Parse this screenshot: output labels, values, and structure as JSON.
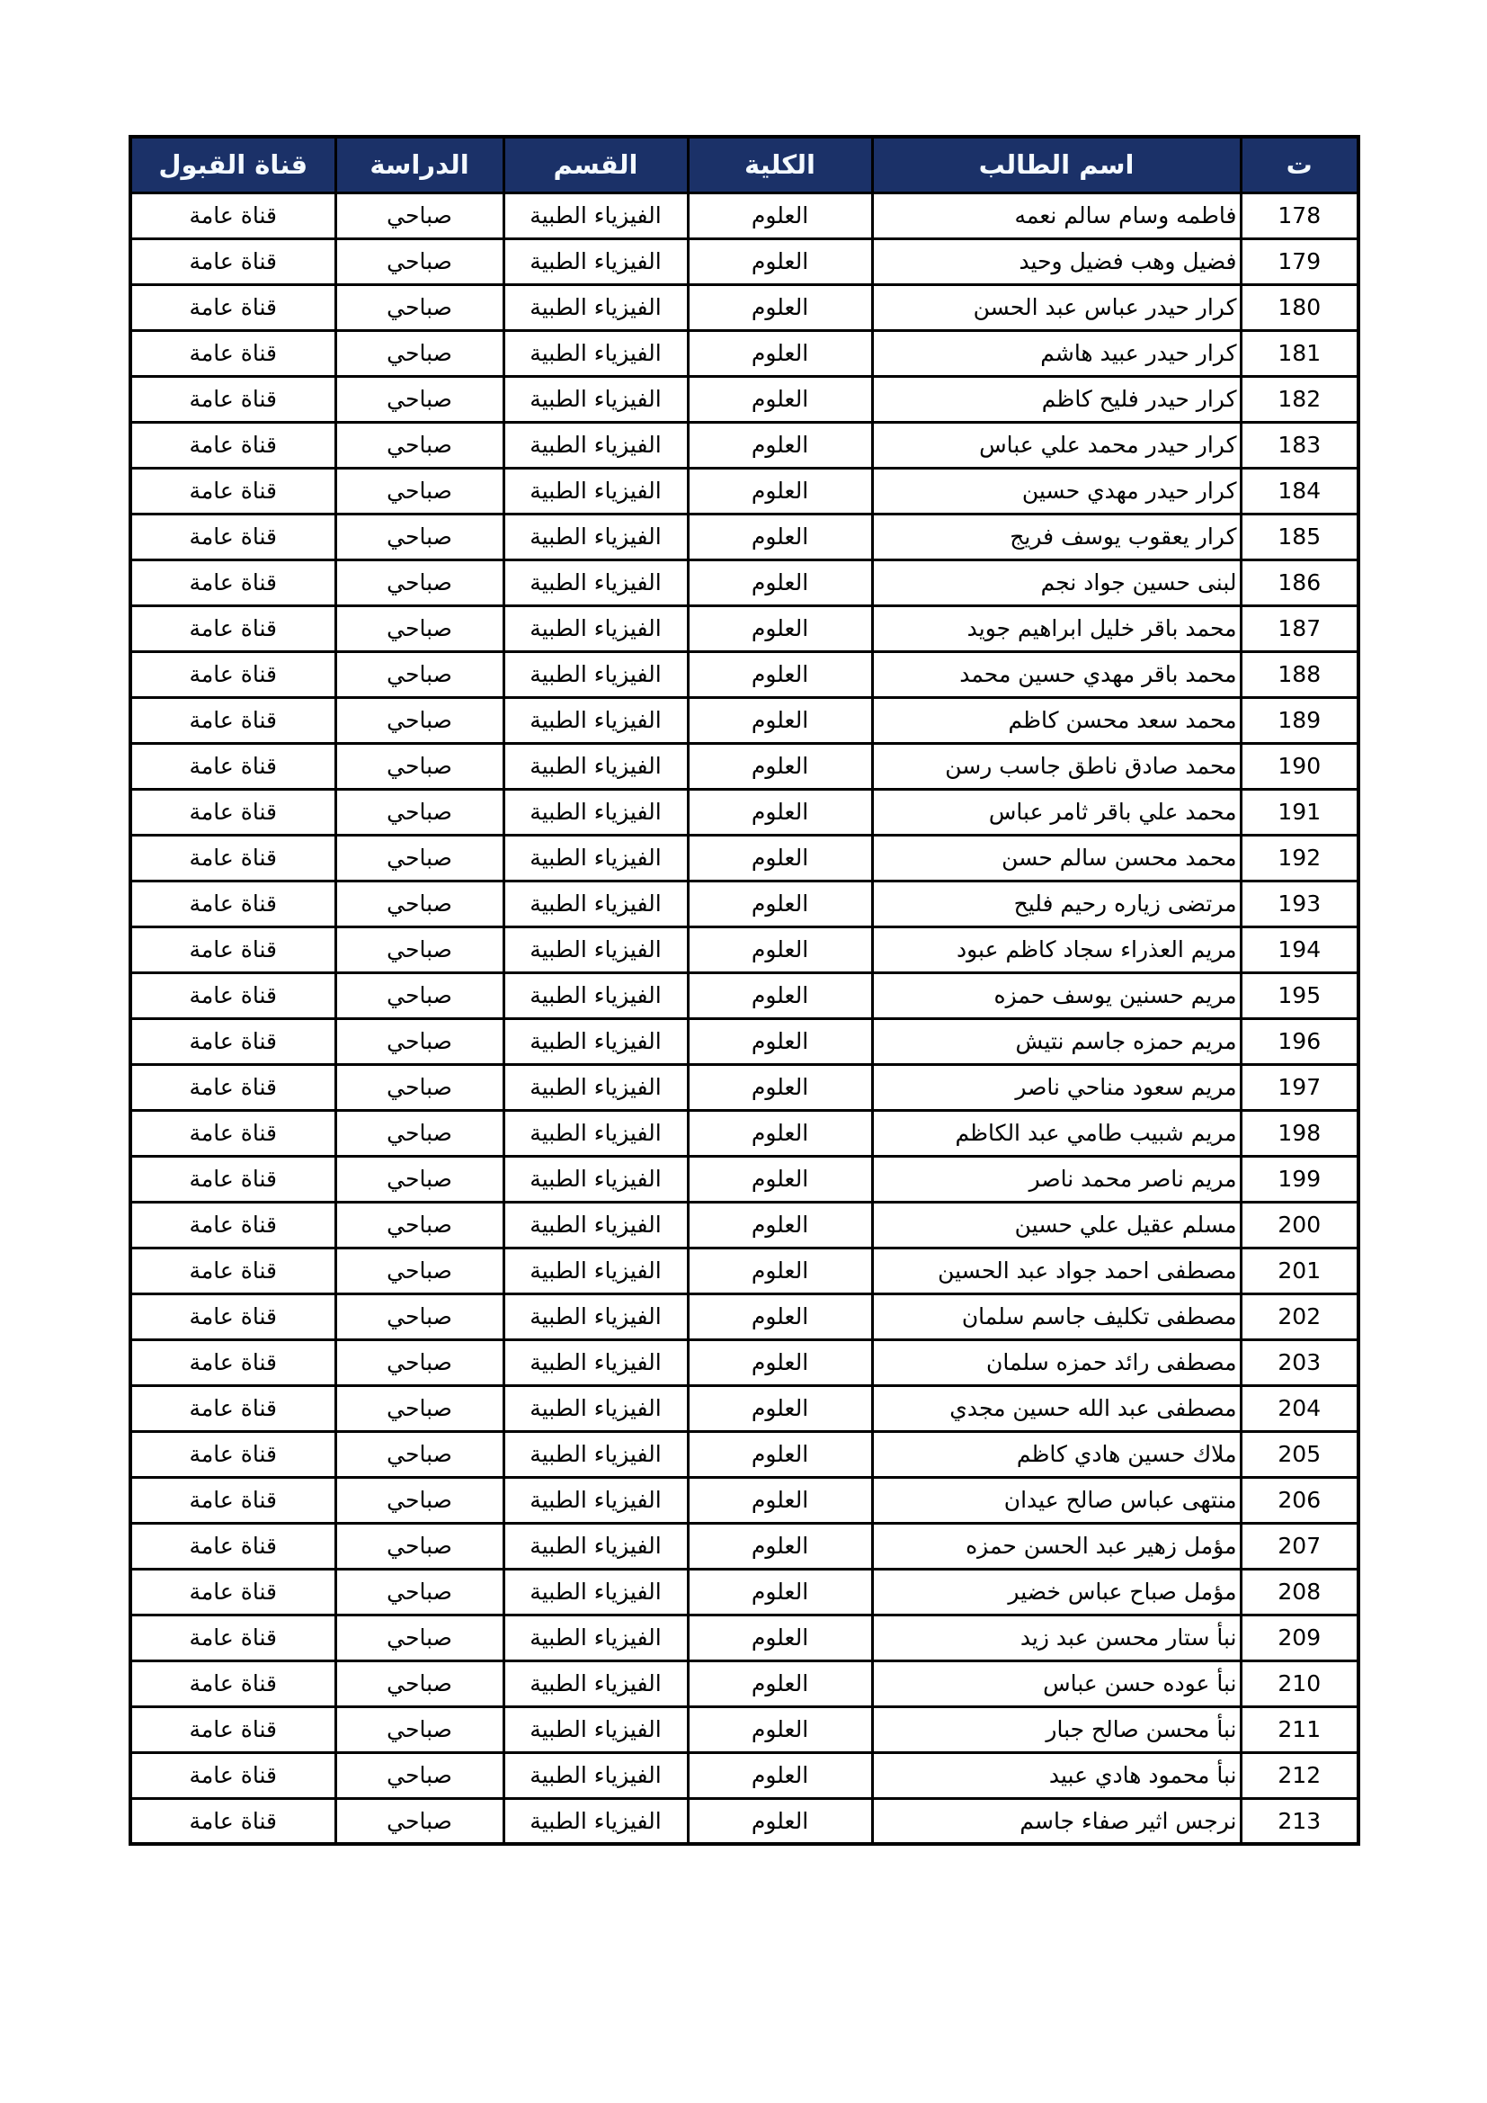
{
  "colors": {
    "header_bg": "#1b3168",
    "header_text": "#f4faff",
    "border": "#000000",
    "page_bg": "#ffffff",
    "cell_text": "#000000"
  },
  "table": {
    "header": {
      "columns": [
        {
          "key": "seq",
          "label": "ت"
        },
        {
          "key": "name",
          "label": "اسم الطالب"
        },
        {
          "key": "college",
          "label": "الكلية"
        },
        {
          "key": "dept",
          "label": "القسم"
        },
        {
          "key": "study",
          "label": "الدراسة"
        },
        {
          "key": "channel",
          "label": "قناة القبول"
        }
      ]
    },
    "rows": [
      {
        "seq": "178",
        "name": "فاطمه وسام سالم نعمه",
        "college": "العلوم",
        "dept": "الفيزياء الطبية",
        "study": "صباحي",
        "channel": "قناة عامة"
      },
      {
        "seq": "179",
        "name": "فضيل وهب فضيل وحيد",
        "college": "العلوم",
        "dept": "الفيزياء الطبية",
        "study": "صباحي",
        "channel": "قناة عامة"
      },
      {
        "seq": "180",
        "name": "كرار حيدر عباس عبد الحسن",
        "college": "العلوم",
        "dept": "الفيزياء الطبية",
        "study": "صباحي",
        "channel": "قناة عامة"
      },
      {
        "seq": "181",
        "name": "كرار حيدر عبيد هاشم",
        "college": "العلوم",
        "dept": "الفيزياء الطبية",
        "study": "صباحي",
        "channel": "قناة عامة"
      },
      {
        "seq": "182",
        "name": "كرار حيدر فليح كاظم",
        "college": "العلوم",
        "dept": "الفيزياء الطبية",
        "study": "صباحي",
        "channel": "قناة عامة"
      },
      {
        "seq": "183",
        "name": "كرار حيدر محمد علي عباس",
        "college": "العلوم",
        "dept": "الفيزياء الطبية",
        "study": "صباحي",
        "channel": "قناة عامة"
      },
      {
        "seq": "184",
        "name": "كرار حيدر مهدي حسين",
        "college": "العلوم",
        "dept": "الفيزياء الطبية",
        "study": "صباحي",
        "channel": "قناة عامة"
      },
      {
        "seq": "185",
        "name": "كرار يعقوب يوسف فريج",
        "college": "العلوم",
        "dept": "الفيزياء الطبية",
        "study": "صباحي",
        "channel": "قناة عامة"
      },
      {
        "seq": "186",
        "name": "لبنى حسين جواد نجم",
        "college": "العلوم",
        "dept": "الفيزياء الطبية",
        "study": "صباحي",
        "channel": "قناة عامة"
      },
      {
        "seq": "187",
        "name": "محمد باقر خليل ابراهيم جويد",
        "college": "العلوم",
        "dept": "الفيزياء الطبية",
        "study": "صباحي",
        "channel": "قناة عامة"
      },
      {
        "seq": "188",
        "name": "محمد باقر مهدي حسين محمد",
        "college": "العلوم",
        "dept": "الفيزياء الطبية",
        "study": "صباحي",
        "channel": "قناة عامة"
      },
      {
        "seq": "189",
        "name": "محمد سعد محسن كاظم",
        "college": "العلوم",
        "dept": "الفيزياء الطبية",
        "study": "صباحي",
        "channel": "قناة عامة"
      },
      {
        "seq": "190",
        "name": "محمد صادق ناطق جاسب رسن",
        "college": "العلوم",
        "dept": "الفيزياء الطبية",
        "study": "صباحي",
        "channel": "قناة عامة"
      },
      {
        "seq": "191",
        "name": "محمد علي باقر ثامر عباس",
        "college": "العلوم",
        "dept": "الفيزياء الطبية",
        "study": "صباحي",
        "channel": "قناة عامة"
      },
      {
        "seq": "192",
        "name": "محمد محسن سالم حسن",
        "college": "العلوم",
        "dept": "الفيزياء الطبية",
        "study": "صباحي",
        "channel": "قناة عامة"
      },
      {
        "seq": "193",
        "name": "مرتضى زياره رحيم فليح",
        "college": "العلوم",
        "dept": "الفيزياء الطبية",
        "study": "صباحي",
        "channel": "قناة عامة"
      },
      {
        "seq": "194",
        "name": "مريم العذراء سجاد كاظم عبود",
        "college": "العلوم",
        "dept": "الفيزياء الطبية",
        "study": "صباحي",
        "channel": "قناة عامة"
      },
      {
        "seq": "195",
        "name": "مريم حسنين يوسف حمزه",
        "college": "العلوم",
        "dept": "الفيزياء الطبية",
        "study": "صباحي",
        "channel": "قناة عامة"
      },
      {
        "seq": "196",
        "name": "مريم حمزه جاسم نتيش",
        "college": "العلوم",
        "dept": "الفيزياء الطبية",
        "study": "صباحي",
        "channel": "قناة عامة"
      },
      {
        "seq": "197",
        "name": "مريم سعود مناحي ناصر",
        "college": "العلوم",
        "dept": "الفيزياء الطبية",
        "study": "صباحي",
        "channel": "قناة عامة"
      },
      {
        "seq": "198",
        "name": "مريم شبيب طامي عبد الكاظم",
        "college": "العلوم",
        "dept": "الفيزياء الطبية",
        "study": "صباحي",
        "channel": "قناة عامة"
      },
      {
        "seq": "199",
        "name": "مريم ناصر محمد ناصر",
        "college": "العلوم",
        "dept": "الفيزياء الطبية",
        "study": "صباحي",
        "channel": "قناة عامة"
      },
      {
        "seq": "200",
        "name": "مسلم عقيل علي حسين",
        "college": "العلوم",
        "dept": "الفيزياء الطبية",
        "study": "صباحي",
        "channel": "قناة عامة"
      },
      {
        "seq": "201",
        "name": "مصطفى احمد جواد عبد الحسين",
        "college": "العلوم",
        "dept": "الفيزياء الطبية",
        "study": "صباحي",
        "channel": "قناة عامة"
      },
      {
        "seq": "202",
        "name": "مصطفى تكليف جاسم سلمان",
        "college": "العلوم",
        "dept": "الفيزياء الطبية",
        "study": "صباحي",
        "channel": "قناة عامة"
      },
      {
        "seq": "203",
        "name": "مصطفى رائد حمزه سلمان",
        "college": "العلوم",
        "dept": "الفيزياء الطبية",
        "study": "صباحي",
        "channel": "قناة عامة"
      },
      {
        "seq": "204",
        "name": "مصطفى عبد الله حسين مجدي",
        "college": "العلوم",
        "dept": "الفيزياء الطبية",
        "study": "صباحي",
        "channel": "قناة عامة"
      },
      {
        "seq": "205",
        "name": "ملاك حسين هادي كاظم",
        "college": "العلوم",
        "dept": "الفيزياء الطبية",
        "study": "صباحي",
        "channel": "قناة عامة"
      },
      {
        "seq": "206",
        "name": "منتهى عباس صالح عيدان",
        "college": "العلوم",
        "dept": "الفيزياء الطبية",
        "study": "صباحي",
        "channel": "قناة عامة"
      },
      {
        "seq": "207",
        "name": "مؤمل زهير عبد الحسن حمزه",
        "college": "العلوم",
        "dept": "الفيزياء الطبية",
        "study": "صباحي",
        "channel": "قناة عامة"
      },
      {
        "seq": "208",
        "name": "مؤمل صباح عباس خضير",
        "college": "العلوم",
        "dept": "الفيزياء الطبية",
        "study": "صباحي",
        "channel": "قناة عامة"
      },
      {
        "seq": "209",
        "name": "نبأ ستار محسن عبد زيد",
        "college": "العلوم",
        "dept": "الفيزياء الطبية",
        "study": "صباحي",
        "channel": "قناة عامة"
      },
      {
        "seq": "210",
        "name": "نبأ عوده حسن عباس",
        "college": "العلوم",
        "dept": "الفيزياء الطبية",
        "study": "صباحي",
        "channel": "قناة عامة"
      },
      {
        "seq": "211",
        "name": "نبأ محسن صالح جبار",
        "college": "العلوم",
        "dept": "الفيزياء الطبية",
        "study": "صباحي",
        "channel": "قناة عامة"
      },
      {
        "seq": "212",
        "name": "نبأ محمود هادي عبيد",
        "college": "العلوم",
        "dept": "الفيزياء الطبية",
        "study": "صباحي",
        "channel": "قناة عامة"
      },
      {
        "seq": "213",
        "name": "نرجس اثير صفاء جاسم",
        "college": "العلوم",
        "dept": "الفيزياء الطبية",
        "study": "صباحي",
        "channel": "قناة عامة"
      }
    ]
  }
}
